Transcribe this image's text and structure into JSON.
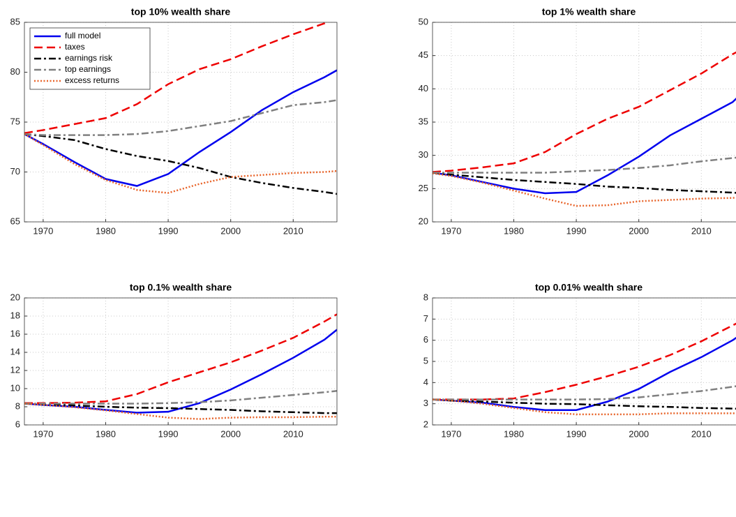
{
  "chart_data": [
    {
      "type": "line",
      "title": "top 10% wealth share",
      "legend": "upper left",
      "grid": true,
      "x": [
        1967,
        1970,
        1975,
        1980,
        1985,
        1990,
        1995,
        2000,
        2005,
        2010,
        2015,
        2017
      ],
      "xlim": [
        1967,
        2017
      ],
      "xticks": [
        1970,
        1980,
        1990,
        2000,
        2010
      ],
      "ylim": [
        65,
        85
      ],
      "yticks": [
        65,
        70,
        75,
        80,
        85
      ],
      "series": [
        {
          "name": "full model",
          "color": "#0000ee",
          "linestyle": "solid",
          "values": [
            73.8,
            72.8,
            71.0,
            69.3,
            68.6,
            69.8,
            72.0,
            74.0,
            76.2,
            78.0,
            79.5,
            80.2
          ]
        },
        {
          "name": "taxes",
          "color": "#ee0000",
          "linestyle": "dashed",
          "values": [
            73.9,
            74.2,
            74.8,
            75.4,
            76.8,
            78.8,
            80.3,
            81.3,
            82.6,
            83.8,
            84.9,
            85.5
          ]
        },
        {
          "name": "earnings risk",
          "color": "#000000",
          "linestyle": "dashdot",
          "values": [
            73.8,
            73.6,
            73.2,
            72.3,
            71.6,
            71.1,
            70.4,
            69.5,
            68.9,
            68.4,
            68.0,
            67.8
          ]
        },
        {
          "name": "top earnings",
          "color": "#808080",
          "linestyle": "dashdot",
          "values": [
            73.8,
            73.7,
            73.7,
            73.7,
            73.8,
            74.1,
            74.6,
            75.1,
            75.9,
            76.7,
            77.0,
            77.2
          ]
        },
        {
          "name": "excess returns",
          "color": "#e8642a",
          "linestyle": "dotted",
          "values": [
            73.8,
            72.7,
            70.8,
            69.2,
            68.2,
            67.9,
            68.8,
            69.5,
            69.7,
            69.9,
            70.0,
            70.1
          ]
        }
      ]
    },
    {
      "type": "line",
      "title": "top 1% wealth share",
      "grid": true,
      "x": [
        1967,
        1970,
        1975,
        1980,
        1985,
        1990,
        1995,
        2000,
        2005,
        2010,
        2015,
        2017
      ],
      "xlim": [
        1967,
        2017
      ],
      "xticks": [
        1970,
        1980,
        1990,
        2000,
        2010
      ],
      "ylim": [
        20,
        50
      ],
      "yticks": [
        20,
        25,
        30,
        35,
        40,
        45,
        50
      ],
      "series": [
        {
          "color": "#0000ee",
          "linestyle": "solid",
          "values": [
            27.4,
            27.0,
            26.0,
            25.0,
            24.3,
            24.5,
            27.0,
            29.8,
            33.0,
            35.5,
            38.0,
            39.8
          ]
        },
        {
          "color": "#ee0000",
          "linestyle": "dashed",
          "values": [
            27.5,
            27.7,
            28.2,
            28.8,
            30.5,
            33.2,
            35.5,
            37.3,
            39.8,
            42.3,
            45.2,
            46.2
          ]
        },
        {
          "color": "#000000",
          "linestyle": "dashdot",
          "values": [
            27.4,
            27.1,
            26.7,
            26.3,
            26.0,
            25.7,
            25.3,
            25.1,
            24.8,
            24.6,
            24.4,
            24.3
          ]
        },
        {
          "color": "#808080",
          "linestyle": "dashdot",
          "values": [
            27.4,
            27.4,
            27.4,
            27.4,
            27.4,
            27.6,
            27.8,
            28.1,
            28.5,
            29.1,
            29.6,
            29.8
          ]
        },
        {
          "color": "#e8642a",
          "linestyle": "dotted",
          "values": [
            27.3,
            26.9,
            25.9,
            24.7,
            23.5,
            22.4,
            22.5,
            23.1,
            23.3,
            23.5,
            23.6,
            23.7
          ]
        }
      ]
    },
    {
      "type": "line",
      "title": "top 0.1% wealth share",
      "grid": true,
      "x": [
        1967,
        1970,
        1975,
        1980,
        1985,
        1990,
        1995,
        2000,
        2005,
        2010,
        2015,
        2017
      ],
      "xlim": [
        1967,
        2017
      ],
      "xticks": [
        1970,
        1980,
        1990,
        2000,
        2010
      ],
      "ylim": [
        6,
        20
      ],
      "yticks": [
        6,
        8,
        10,
        12,
        14,
        16,
        18,
        20
      ],
      "series": [
        {
          "color": "#0000ee",
          "linestyle": "solid",
          "values": [
            8.35,
            8.2,
            8.0,
            7.65,
            7.35,
            7.45,
            8.4,
            9.9,
            11.6,
            13.4,
            15.4,
            16.5
          ]
        },
        {
          "color": "#ee0000",
          "linestyle": "dashed",
          "values": [
            8.4,
            8.4,
            8.45,
            8.6,
            9.4,
            10.7,
            11.8,
            12.9,
            14.2,
            15.6,
            17.4,
            18.2
          ]
        },
        {
          "color": "#000000",
          "linestyle": "dashdot",
          "values": [
            8.35,
            8.3,
            8.15,
            8.0,
            7.9,
            7.85,
            7.75,
            7.65,
            7.5,
            7.4,
            7.3,
            7.3
          ]
        },
        {
          "color": "#808080",
          "linestyle": "dashdot",
          "values": [
            8.35,
            8.35,
            8.35,
            8.35,
            8.35,
            8.4,
            8.5,
            8.7,
            9.0,
            9.3,
            9.6,
            9.75
          ]
        },
        {
          "color": "#e8642a",
          "linestyle": "dotted",
          "values": [
            8.35,
            8.2,
            7.95,
            7.6,
            7.2,
            6.8,
            6.65,
            6.8,
            6.85,
            6.85,
            6.9,
            6.9
          ]
        }
      ]
    },
    {
      "type": "line",
      "title": "top 0.01% wealth share",
      "grid": true,
      "x": [
        1967,
        1970,
        1975,
        1980,
        1985,
        1990,
        1995,
        2000,
        2005,
        2010,
        2015,
        2017
      ],
      "xlim": [
        1967,
        2017
      ],
      "xticks": [
        1970,
        1980,
        1990,
        2000,
        2010
      ],
      "ylim": [
        2,
        8
      ],
      "yticks": [
        2,
        3,
        4,
        5,
        6,
        7,
        8
      ],
      "series": [
        {
          "color": "#0000ee",
          "linestyle": "solid",
          "values": [
            3.2,
            3.15,
            3.05,
            2.85,
            2.7,
            2.7,
            3.1,
            3.7,
            4.5,
            5.2,
            6.0,
            6.4
          ]
        },
        {
          "color": "#ee0000",
          "linestyle": "dashed",
          "values": [
            3.2,
            3.2,
            3.2,
            3.25,
            3.55,
            3.9,
            4.3,
            4.75,
            5.3,
            5.95,
            6.7,
            7.0
          ]
        },
        {
          "color": "#000000",
          "linestyle": "dashdot",
          "values": [
            3.2,
            3.15,
            3.1,
            3.05,
            3.0,
            2.98,
            2.93,
            2.88,
            2.85,
            2.8,
            2.77,
            2.75
          ]
        },
        {
          "color": "#808080",
          "linestyle": "dashdot",
          "values": [
            3.2,
            3.2,
            3.2,
            3.2,
            3.2,
            3.2,
            3.22,
            3.3,
            3.45,
            3.6,
            3.8,
            3.9
          ]
        },
        {
          "color": "#e8642a",
          "linestyle": "dotted",
          "values": [
            3.2,
            3.15,
            3.0,
            2.8,
            2.6,
            2.5,
            2.5,
            2.5,
            2.55,
            2.55,
            2.55,
            2.55
          ]
        }
      ]
    }
  ]
}
